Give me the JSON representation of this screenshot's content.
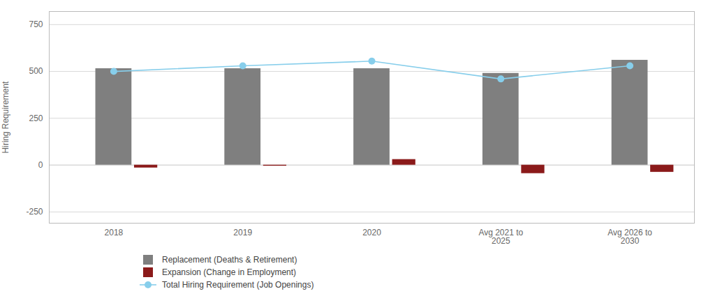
{
  "chart_data": {
    "type": "bar",
    "categories": [
      "2018",
      "2019",
      "2020",
      "Avg 2021 to\n2025",
      "Avg 2026 to\n2030"
    ],
    "series": [
      {
        "name": "Replacement (Deaths & Retirement)",
        "type": "bar",
        "color": "#7f7f7f",
        "values": [
          515,
          515,
          515,
          490,
          560
        ]
      },
      {
        "name": "Expansion (Change in Employment)",
        "type": "bar",
        "color": "#8B1A1A",
        "values": [
          -15,
          -5,
          30,
          -45,
          -38
        ]
      },
      {
        "name": "Total Hiring Requirement (Job Openings)",
        "type": "line",
        "color": "#87CEEB",
        "marker": "circle",
        "values": [
          500,
          530,
          555,
          460,
          530
        ]
      }
    ],
    "ylabel": "Hiring Requirement",
    "ylim": [
      -310,
      820
    ],
    "yticks": [
      -250,
      0,
      250,
      500,
      750
    ],
    "grid": true,
    "legend": "bottom"
  }
}
